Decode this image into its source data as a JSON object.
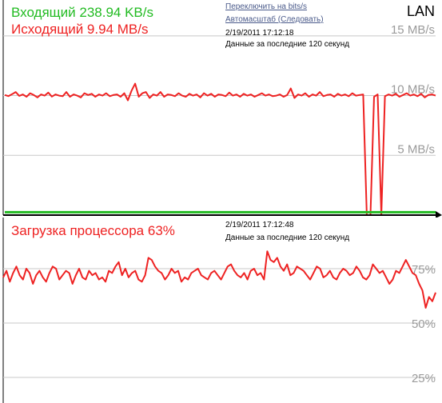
{
  "network": {
    "incoming": "Входящий 238.94 KB/s",
    "outgoing": "Исходящий 9.94 MB/s",
    "switch_link": "Переключить на bits/s",
    "autoscale_link": "Автомасштаб (Следовать)",
    "timestamp": "2/19/2011 17:12:18",
    "period": "Данные за последние 120 секунд",
    "adapter": "LAN",
    "y_ticks": [
      "15 MB/s",
      "10 MB/s",
      "5 MB/s"
    ],
    "colors": {
      "incoming": "#22bb22",
      "outgoing": "#ee2222"
    }
  },
  "cpu": {
    "load": "Загрузка процессора 63%",
    "timestamp": "2/19/2011 17:12:48",
    "period": "Данные за последние 120 секунд",
    "y_ticks": [
      "75%",
      "50%",
      "25%"
    ],
    "color": "#ee2222"
  },
  "chart_data": [
    {
      "type": "line",
      "series": [
        {
          "name": "Исходящий",
          "values": [
            10.05,
            9.96,
            10.12,
            10.3,
            9.98,
            10.1,
            9.9,
            10.2,
            10.05,
            9.85,
            10.1,
            10.0,
            10.25,
            9.92,
            10.1,
            10.0,
            9.95,
            10.3,
            9.9,
            10.1,
            10.0,
            9.85,
            10.2,
            10.05,
            10.15,
            9.9,
            10.1,
            10.0,
            10.2,
            9.95,
            10.05,
            10.1,
            9.9,
            10.2,
            9.6,
            10.4,
            11.0,
            9.9,
            10.2,
            10.3,
            9.8,
            10.1,
            10.0,
            10.3,
            9.9,
            10.1,
            10.05,
            9.95,
            10.2,
            10.0,
            9.9,
            10.15,
            10.0,
            10.1,
            9.85,
            10.2,
            10.0,
            10.15,
            9.9,
            10.1,
            10.05,
            9.95,
            10.25,
            10.0,
            10.1,
            9.9,
            10.15,
            10.0,
            10.1,
            9.9,
            10.05,
            10.2,
            10.0,
            10.1,
            9.95,
            10.0,
            10.1,
            9.9,
            10.05,
            10.6,
            9.8,
            10.1,
            10.0,
            10.2,
            9.9,
            10.1,
            10.0,
            10.3,
            9.95,
            10.05,
            10.1,
            9.9,
            10.15,
            10.0,
            10.1,
            9.95,
            10.2,
            10.0,
            10.05,
            10.1,
            0.0,
            0.0,
            9.9,
            10.1,
            0.0,
            9.95,
            10.1,
            10.0,
            10.15,
            9.9,
            10.05,
            10.2,
            10.0,
            10.1,
            9.95,
            10.15,
            9.85,
            10.05,
            10.1,
            10.0
          ]
        },
        {
          "name": "Входящий",
          "values": [
            0.24,
            0.24,
            0.24,
            0.24,
            0.24,
            0.24,
            0.24,
            0.24,
            0.24,
            0.24,
            0.24,
            0.24,
            0.24,
            0.24,
            0.24,
            0.24,
            0.24,
            0.24,
            0.24,
            0.24,
            0.24,
            0.24,
            0.24,
            0.24,
            0.24,
            0.24,
            0.24,
            0.24,
            0.24,
            0.24,
            0.24,
            0.24,
            0.24,
            0.24,
            0.24,
            0.24,
            0.24,
            0.24,
            0.24,
            0.24,
            0.24,
            0.24,
            0.24,
            0.24,
            0.24,
            0.24,
            0.24,
            0.24,
            0.24,
            0.24,
            0.24,
            0.24,
            0.24,
            0.24,
            0.24,
            0.24,
            0.24,
            0.24,
            0.24,
            0.24,
            0.24,
            0.24,
            0.24,
            0.24,
            0.24,
            0.24,
            0.24,
            0.24,
            0.24,
            0.24,
            0.24,
            0.24,
            0.24,
            0.24,
            0.24,
            0.24,
            0.24,
            0.24,
            0.24,
            0.24,
            0.24,
            0.24,
            0.24,
            0.24,
            0.24,
            0.24,
            0.24,
            0.24,
            0.24,
            0.24,
            0.24,
            0.24,
            0.24,
            0.24,
            0.24,
            0.24,
            0.24,
            0.24,
            0.24,
            0.24,
            0.24,
            0.24,
            0.24,
            0.24,
            0.24,
            0.24,
            0.24,
            0.24,
            0.24,
            0.24,
            0.24,
            0.24,
            0.24,
            0.24,
            0.24,
            0.24,
            0.24,
            0.24,
            0.24,
            0.24
          ]
        }
      ],
      "ylim": [
        0,
        18
      ],
      "grid": true
    },
    {
      "type": "line",
      "series": [
        {
          "name": "Загрузка процессора",
          "values": [
            71,
            74,
            69,
            73,
            76,
            72,
            70,
            75,
            73,
            68,
            72,
            74,
            71,
            69,
            73,
            76,
            75,
            70,
            72,
            74,
            73,
            68,
            72,
            75,
            71,
            70,
            74,
            72,
            73,
            70,
            71,
            69,
            74,
            73,
            76,
            78,
            72,
            75,
            71,
            73,
            74,
            70,
            69,
            72,
            80,
            79,
            76,
            74,
            73,
            70,
            72,
            75,
            73,
            74,
            69,
            71,
            70,
            73,
            74,
            75,
            72,
            71,
            70,
            73,
            74,
            72,
            70,
            73,
            76,
            77,
            74,
            72,
            71,
            73,
            70,
            74,
            75,
            72,
            73,
            70,
            83,
            79,
            78,
            80,
            76,
            74,
            77,
            72,
            73,
            76,
            75,
            74,
            72,
            70,
            73,
            76,
            75,
            71,
            72,
            74,
            71,
            70,
            73,
            75,
            74,
            72,
            73,
            76,
            74,
            71,
            70,
            72,
            77,
            75,
            73,
            74,
            71,
            68,
            70,
            74,
            73,
            76,
            79,
            76,
            73,
            72,
            68,
            65,
            57,
            62,
            60,
            64
          ]
        }
      ],
      "ylim": [
        0,
        100
      ],
      "grid": true
    }
  ]
}
